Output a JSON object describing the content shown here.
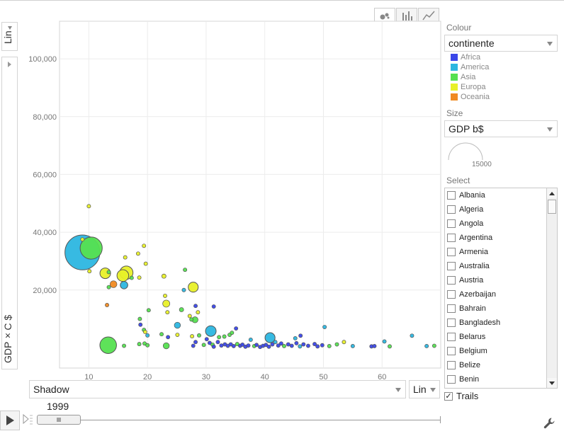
{
  "controls": {
    "y_scale": "Lin",
    "x_variable": "Shadow",
    "x_scale": "Lin",
    "year": "1999"
  },
  "panel": {
    "colour_label": "Colour",
    "colour_value": "continente",
    "size_label": "Size",
    "size_value": "GDP b$",
    "size_scale_value": "15000",
    "select_label": "Select",
    "trails_label": "Trails",
    "trails_checked": true,
    "countries": [
      "Albania",
      "Algeria",
      "Angola",
      "Argentina",
      "Armenia",
      "Australia",
      "Austria",
      "Azerbaijan",
      "Bahrain",
      "Bangladesh",
      "Belarus",
      "Belgium",
      "Belize",
      "Benin"
    ]
  },
  "colors": {
    "Africa": "#3a46e8",
    "America": "#2cb6e0",
    "Asia": "#55e050",
    "Europa": "#e8f028",
    "Oceania": "#f08a22"
  },
  "chart_data": {
    "type": "scatter",
    "xlabel": "",
    "ylabel": "GDP×C $",
    "xlim": [
      5,
      70
    ],
    "ylim": [
      -7000,
      113000
    ],
    "x_ticks": [
      10,
      20,
      30,
      40,
      50,
      60
    ],
    "y_ticks": [
      20000,
      40000,
      60000,
      80000,
      100000
    ],
    "x_tick_labels": [
      "10",
      "20",
      "30",
      "40",
      "50",
      "60"
    ],
    "y_tick_labels": [
      "20,000",
      "40,000",
      "60,000",
      "80,000",
      "100,000"
    ],
    "legend": [
      "Africa",
      "America",
      "Asia",
      "Europa",
      "Oceania"
    ],
    "points": [
      {
        "x": 8.9,
        "y": 33000,
        "c": "America",
        "gdp": 9700
      },
      {
        "x": 10.4,
        "y": 34500,
        "c": "Asia",
        "gdp": 3900
      },
      {
        "x": 10.0,
        "y": 49000,
        "c": "Europa",
        "gdp": 20
      },
      {
        "x": 8.9,
        "y": 37500,
        "c": "Europa",
        "gdp": 60
      },
      {
        "x": 10.1,
        "y": 26500,
        "c": "Europa",
        "gdp": 40
      },
      {
        "x": 12.8,
        "y": 25800,
        "c": "Europa",
        "gdp": 900
      },
      {
        "x": 13.4,
        "y": 26200,
        "c": "Asia",
        "gdp": 80
      },
      {
        "x": 16.4,
        "y": 26000,
        "c": "Europa",
        "gdp": 1400
      },
      {
        "x": 15.8,
        "y": 25000,
        "c": "Europa",
        "gdp": 1100
      },
      {
        "x": 16.0,
        "y": 21700,
        "c": "America",
        "gdp": 450
      },
      {
        "x": 14.2,
        "y": 22000,
        "c": "Oceania",
        "gdp": 380
      },
      {
        "x": 13.4,
        "y": 21000,
        "c": "Asia",
        "gdp": 30
      },
      {
        "x": 17.3,
        "y": 24200,
        "c": "Asia",
        "gdp": 50
      },
      {
        "x": 18.6,
        "y": 24300,
        "c": "Europa",
        "gdp": 50
      },
      {
        "x": 18.4,
        "y": 32600,
        "c": "Europa",
        "gdp": 30
      },
      {
        "x": 19.4,
        "y": 35300,
        "c": "Europa",
        "gdp": 30
      },
      {
        "x": 19.7,
        "y": 29100,
        "c": "Europa",
        "gdp": 80
      },
      {
        "x": 16.2,
        "y": 31300,
        "c": "Europa",
        "gdp": 30
      },
      {
        "x": 22.8,
        "y": 24800,
        "c": "Europa",
        "gdp": 150
      },
      {
        "x": 27.8,
        "y": 21000,
        "c": "Europa",
        "gdp": 800
      },
      {
        "x": 26.4,
        "y": 27000,
        "c": "Asia",
        "gdp": 30
      },
      {
        "x": 26.2,
        "y": 20000,
        "c": "America",
        "gdp": 30
      },
      {
        "x": 23.0,
        "y": 18000,
        "c": "Europa",
        "gdp": 60
      },
      {
        "x": 23.2,
        "y": 15300,
        "c": "Europa",
        "gdp": 400
      },
      {
        "x": 25.8,
        "y": 13200,
        "c": "Asia",
        "gdp": 150
      },
      {
        "x": 28.2,
        "y": 14500,
        "c": "Africa",
        "gdp": 30
      },
      {
        "x": 20.2,
        "y": 13000,
        "c": "Asia",
        "gdp": 30
      },
      {
        "x": 23.4,
        "y": 12300,
        "c": "Europa",
        "gdp": 40
      },
      {
        "x": 13.1,
        "y": 14800,
        "c": "Oceania",
        "gdp": 40
      },
      {
        "x": 18.7,
        "y": 10000,
        "c": "Asia",
        "gdp": 20
      },
      {
        "x": 27.2,
        "y": 11000,
        "c": "Europa",
        "gdp": 60
      },
      {
        "x": 27.5,
        "y": 9800,
        "c": "Asia",
        "gdp": 50
      },
      {
        "x": 28.1,
        "y": 9700,
        "c": "Asia",
        "gdp": 300
      },
      {
        "x": 28.6,
        "y": 12300,
        "c": "Europa",
        "gdp": 50
      },
      {
        "x": 31.3,
        "y": 14300,
        "c": "Africa",
        "gdp": 20
      },
      {
        "x": 18.8,
        "y": 8000,
        "c": "Africa",
        "gdp": 30
      },
      {
        "x": 25.1,
        "y": 7800,
        "c": "America",
        "gdp": 300
      },
      {
        "x": 19.4,
        "y": 6200,
        "c": "Asia",
        "gdp": 30
      },
      {
        "x": 19.6,
        "y": 5500,
        "c": "Europa",
        "gdp": 30
      },
      {
        "x": 20.0,
        "y": 4300,
        "c": "America",
        "gdp": 30
      },
      {
        "x": 25.1,
        "y": 4500,
        "c": "Europa",
        "gdp": 30
      },
      {
        "x": 27.6,
        "y": 4000,
        "c": "Europa",
        "gdp": 50
      },
      {
        "x": 28.8,
        "y": 4300,
        "c": "Asia",
        "gdp": 30
      },
      {
        "x": 30.8,
        "y": 5800,
        "c": "America",
        "gdp": 900
      },
      {
        "x": 28.2,
        "y": 2000,
        "c": "Africa",
        "gdp": 30
      },
      {
        "x": 32.2,
        "y": 3700,
        "c": "Asia",
        "gdp": 50
      },
      {
        "x": 33.1,
        "y": 3900,
        "c": "Asia",
        "gdp": 30
      },
      {
        "x": 34.0,
        "y": 4500,
        "c": "Asia",
        "gdp": 30
      },
      {
        "x": 34.4,
        "y": 5200,
        "c": "Asia",
        "gdp": 30
      },
      {
        "x": 35.1,
        "y": 6700,
        "c": "Africa",
        "gdp": 20
      },
      {
        "x": 40.9,
        "y": 3500,
        "c": "America",
        "gdp": 800
      },
      {
        "x": 45.2,
        "y": 3300,
        "c": "America",
        "gdp": 30
      },
      {
        "x": 46.1,
        "y": 4200,
        "c": "Africa",
        "gdp": 20
      },
      {
        "x": 50.2,
        "y": 7200,
        "c": "America",
        "gdp": 40
      },
      {
        "x": 13.3,
        "y": 900,
        "c": "Asia",
        "gdp": 2200
      },
      {
        "x": 23.2,
        "y": 700,
        "c": "Asia",
        "gdp": 300
      },
      {
        "x": 16.0,
        "y": 700,
        "c": "Asia",
        "gdp": 30
      },
      {
        "x": 18.6,
        "y": 1300,
        "c": "Asia",
        "gdp": 30
      },
      {
        "x": 19.5,
        "y": 1500,
        "c": "Asia",
        "gdp": 30
      },
      {
        "x": 20.0,
        "y": 900,
        "c": "Asia",
        "gdp": 30
      },
      {
        "x": 22.4,
        "y": 4700,
        "c": "Asia",
        "gdp": 20
      },
      {
        "x": 23.5,
        "y": 3700,
        "c": "Africa",
        "gdp": 20
      },
      {
        "x": 27.8,
        "y": 700,
        "c": "Africa",
        "gdp": 20
      },
      {
        "x": 29.6,
        "y": 1000,
        "c": "Asia",
        "gdp": 30
      },
      {
        "x": 30.1,
        "y": 3000,
        "c": "Africa",
        "gdp": 20
      },
      {
        "x": 30.6,
        "y": 1700,
        "c": "Africa",
        "gdp": 20
      },
      {
        "x": 31.1,
        "y": 1100,
        "c": "Asia",
        "gdp": 20
      },
      {
        "x": 31.3,
        "y": 400,
        "c": "Africa",
        "gdp": 20
      },
      {
        "x": 32.0,
        "y": 2000,
        "c": "Africa",
        "gdp": 20
      },
      {
        "x": 32.6,
        "y": 800,
        "c": "Africa",
        "gdp": 20
      },
      {
        "x": 33.2,
        "y": 1200,
        "c": "Africa",
        "gdp": 20
      },
      {
        "x": 33.7,
        "y": 700,
        "c": "Africa",
        "gdp": 20
      },
      {
        "x": 34.2,
        "y": 1200,
        "c": "Africa",
        "gdp": 20
      },
      {
        "x": 34.7,
        "y": 600,
        "c": "Africa",
        "gdp": 20
      },
      {
        "x": 35.3,
        "y": 1300,
        "c": "Asia",
        "gdp": 20
      },
      {
        "x": 35.8,
        "y": 700,
        "c": "Africa",
        "gdp": 20
      },
      {
        "x": 36.2,
        "y": 1100,
        "c": "Africa",
        "gdp": 20
      },
      {
        "x": 36.7,
        "y": 400,
        "c": "Africa",
        "gdp": 20
      },
      {
        "x": 37.2,
        "y": 800,
        "c": "Africa",
        "gdp": 20
      },
      {
        "x": 37.6,
        "y": 2800,
        "c": "America",
        "gdp": 20
      },
      {
        "x": 38.2,
        "y": 600,
        "c": "Asia",
        "gdp": 20
      },
      {
        "x": 38.6,
        "y": 1000,
        "c": "Africa",
        "gdp": 20
      },
      {
        "x": 39.2,
        "y": 300,
        "c": "Africa",
        "gdp": 20
      },
      {
        "x": 39.7,
        "y": 700,
        "c": "Africa",
        "gdp": 20
      },
      {
        "x": 40.2,
        "y": 1000,
        "c": "Africa",
        "gdp": 20
      },
      {
        "x": 40.7,
        "y": 400,
        "c": "Africa",
        "gdp": 20
      },
      {
        "x": 41.3,
        "y": 1200,
        "c": "Africa",
        "gdp": 20
      },
      {
        "x": 41.8,
        "y": 2000,
        "c": "America",
        "gdp": 20
      },
      {
        "x": 42.3,
        "y": 800,
        "c": "Africa",
        "gdp": 20
      },
      {
        "x": 42.8,
        "y": 1500,
        "c": "Africa",
        "gdp": 20
      },
      {
        "x": 43.3,
        "y": 600,
        "c": "Asia",
        "gdp": 20
      },
      {
        "x": 44.0,
        "y": 1200,
        "c": "Africa",
        "gdp": 20
      },
      {
        "x": 44.6,
        "y": 700,
        "c": "Africa",
        "gdp": 20
      },
      {
        "x": 45.4,
        "y": 1600,
        "c": "Africa",
        "gdp": 20
      },
      {
        "x": 46.0,
        "y": 500,
        "c": "America",
        "gdp": 20
      },
      {
        "x": 46.6,
        "y": 1200,
        "c": "Africa",
        "gdp": 20
      },
      {
        "x": 47.4,
        "y": 700,
        "c": "Africa",
        "gdp": 20
      },
      {
        "x": 48.5,
        "y": 1300,
        "c": "Africa",
        "gdp": 20
      },
      {
        "x": 49.0,
        "y": 500,
        "c": "Africa",
        "gdp": 20
      },
      {
        "x": 49.8,
        "y": 900,
        "c": "Africa",
        "gdp": 20
      },
      {
        "x": 51.0,
        "y": 600,
        "c": "Asia",
        "gdp": 20
      },
      {
        "x": 52.3,
        "y": 1200,
        "c": "Asia",
        "gdp": 20
      },
      {
        "x": 53.5,
        "y": 2000,
        "c": "Europa",
        "gdp": 20
      },
      {
        "x": 55.0,
        "y": 600,
        "c": "America",
        "gdp": 20
      },
      {
        "x": 58.2,
        "y": 500,
        "c": "Africa",
        "gdp": 20
      },
      {
        "x": 58.7,
        "y": 600,
        "c": "Africa",
        "gdp": 20
      },
      {
        "x": 60.4,
        "y": 2200,
        "c": "America",
        "gdp": 20
      },
      {
        "x": 61.3,
        "y": 500,
        "c": "Asia",
        "gdp": 20
      },
      {
        "x": 65.1,
        "y": 4200,
        "c": "America",
        "gdp": 20
      },
      {
        "x": 67.6,
        "y": 600,
        "c": "America",
        "gdp": 20
      },
      {
        "x": 68.9,
        "y": 700,
        "c": "Asia",
        "gdp": 20
      }
    ]
  }
}
